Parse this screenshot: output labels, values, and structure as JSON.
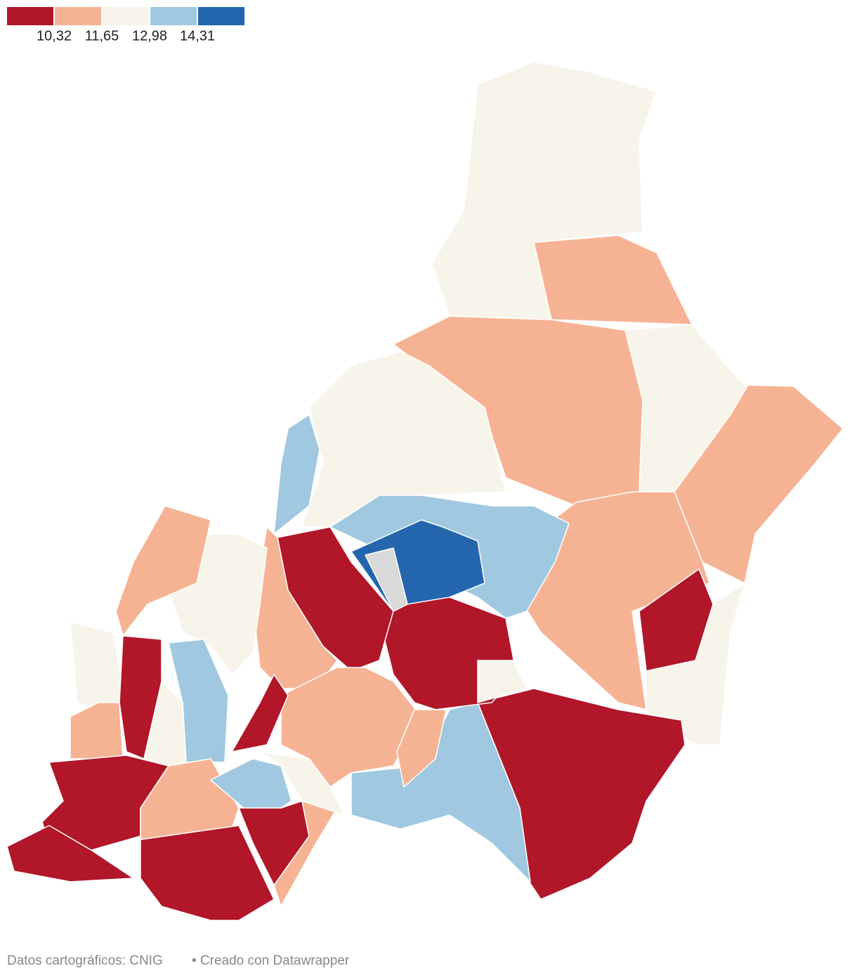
{
  "legend": {
    "colors": [
      "#b11629",
      "#f6b394",
      "#f7f5ea",
      "#a0c8e0",
      "#2466ae"
    ],
    "ticks": [
      "10,32",
      "11,65",
      "12,98",
      "14,31"
    ]
  },
  "footer": {
    "source": "Datos cartográficos: CNIG",
    "credit": "• Creado con Datawrapper"
  }
}
